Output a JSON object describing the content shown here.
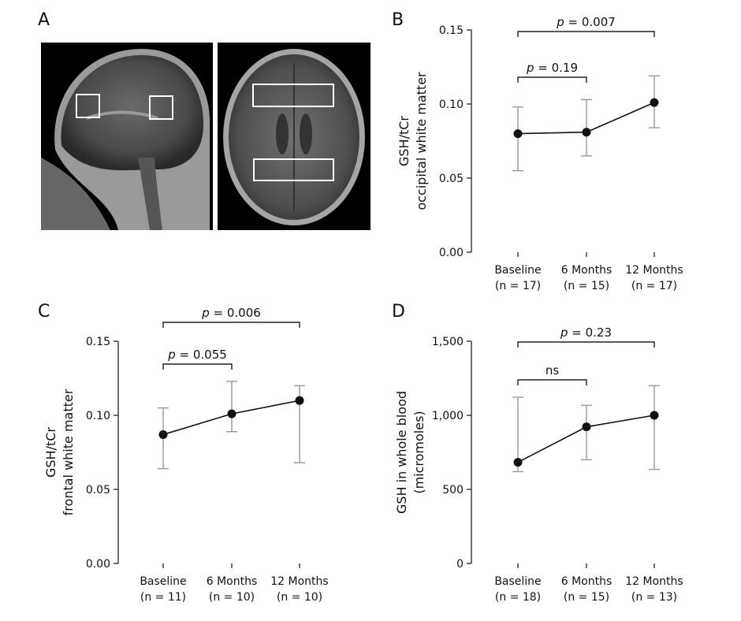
{
  "mri": {
    "letter": "A",
    "sagittal_label": "",
    "axial_label": ""
  },
  "chart_data": [
    {
      "type": "line",
      "panel": "B",
      "ylabel_lines": [
        "GSH/tCr",
        "occipital white matter"
      ],
      "categories": [
        [
          "Baseline",
          "(n = 17)"
        ],
        [
          "6 Months",
          "(n = 15)"
        ],
        [
          "12 Months",
          "(n = 17)"
        ]
      ],
      "values": [
        0.08,
        0.081,
        0.101
      ],
      "err_low": [
        0.055,
        0.065,
        0.084
      ],
      "err_high": [
        0.098,
        0.103,
        0.119
      ],
      "ylim": [
        0,
        0.15
      ],
      "yticks": [
        0,
        0.05,
        0.1,
        0.15
      ],
      "ytick_labels": [
        "0.00",
        "0.05",
        "0.10",
        "0.15"
      ],
      "comparisons": [
        {
          "from": 0,
          "to": 1,
          "label": "p = 0.19",
          "italic_p": true
        },
        {
          "from": 0,
          "to": 2,
          "label": "p = 0.007",
          "italic_p": true
        }
      ]
    },
    {
      "type": "line",
      "panel": "C",
      "ylabel_lines": [
        "GSH/tCr",
        "frontal white matter"
      ],
      "categories": [
        [
          "Baseline",
          "(n = 11)"
        ],
        [
          "6 Months",
          "(n = 10)"
        ],
        [
          "12 Months",
          "(n = 10)"
        ]
      ],
      "values": [
        0.087,
        0.101,
        0.11
      ],
      "err_low": [
        0.064,
        0.089,
        0.068
      ],
      "err_high": [
        0.105,
        0.123,
        0.12
      ],
      "ylim": [
        0,
        0.15
      ],
      "yticks": [
        0,
        0.05,
        0.1,
        0.15
      ],
      "ytick_labels": [
        "0.00",
        "0.05",
        "0.10",
        "0.15"
      ],
      "comparisons": [
        {
          "from": 0,
          "to": 1,
          "label": "p = 0.055",
          "italic_p": true
        },
        {
          "from": 0,
          "to": 2,
          "label": "p = 0.006",
          "italic_p": true
        }
      ]
    },
    {
      "type": "line",
      "panel": "D",
      "ylabel_lines": [
        "GSH in whole blood",
        "(micromoles)"
      ],
      "categories": [
        [
          "Baseline",
          "(n = 18)"
        ],
        [
          "6 Months",
          "(n = 15)"
        ],
        [
          "12 Months",
          "(n = 13)"
        ]
      ],
      "values": [
        683,
        922,
        1000
      ],
      "err_low": [
        620,
        700,
        635
      ],
      "err_high": [
        1122,
        1067,
        1200
      ],
      "ylim": [
        0,
        1500
      ],
      "yticks": [
        0,
        500,
        1000,
        1500
      ],
      "ytick_labels": [
        "0",
        "500",
        "1,000",
        "1,500"
      ],
      "comparisons": [
        {
          "from": 0,
          "to": 1,
          "label": "ns",
          "italic_p": false
        },
        {
          "from": 0,
          "to": 2,
          "label": "p = 0.23",
          "italic_p": true
        }
      ]
    }
  ]
}
